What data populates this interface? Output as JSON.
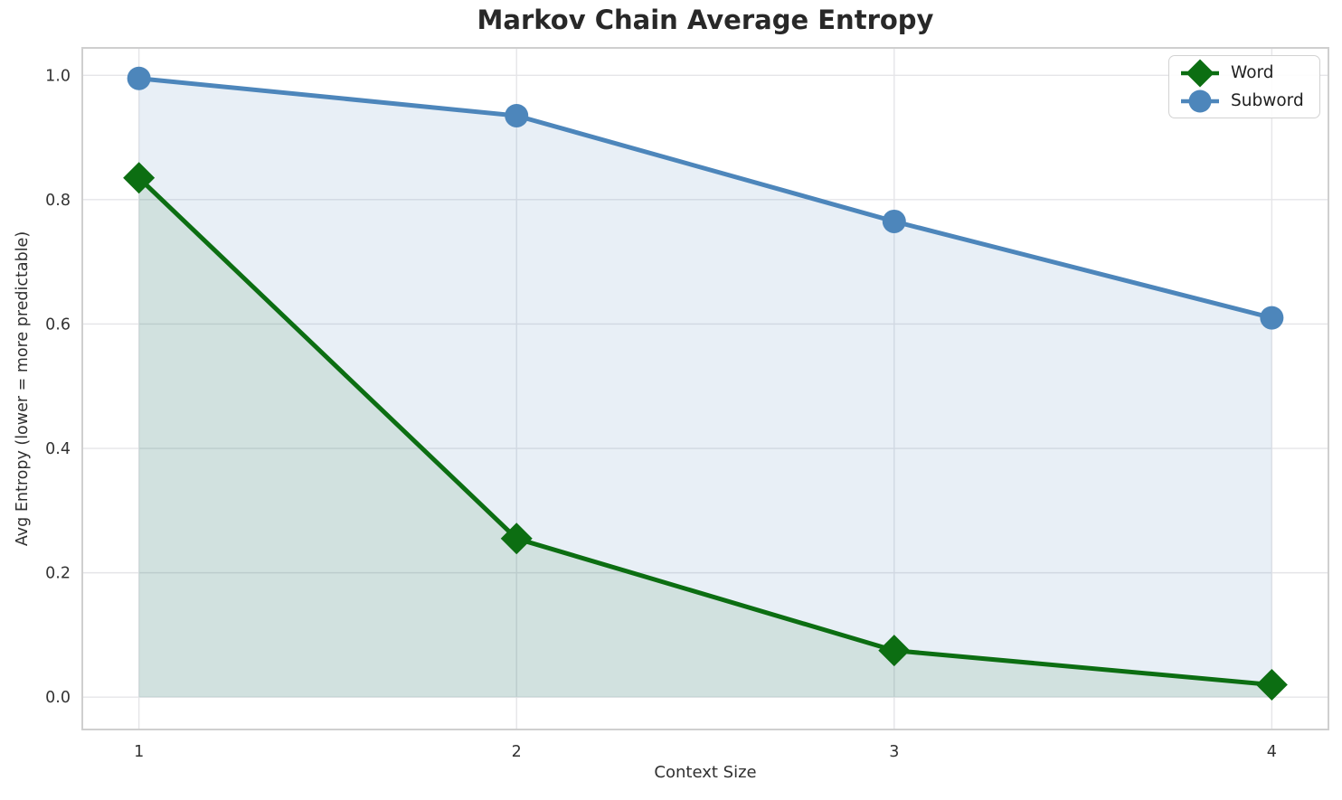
{
  "chart_data": {
    "type": "line",
    "title": "Markov Chain Average Entropy",
    "xlabel": "Context Size",
    "ylabel": "Avg Entropy (lower = more predictable)",
    "x": [
      1,
      2,
      3,
      4
    ],
    "xtick_labels": [
      "1",
      "2",
      "3",
      "4"
    ],
    "yticks": [
      0.0,
      0.2,
      0.4,
      0.6,
      0.8,
      1.0
    ],
    "ytick_labels": [
      "0.0",
      "0.2",
      "0.4",
      "0.6",
      "0.8",
      "1.0"
    ],
    "xlim": [
      0.85,
      4.15
    ],
    "ylim": [
      -0.052,
      1.044
    ],
    "grid": true,
    "legend_position": "upper right",
    "series": [
      {
        "name": "Word",
        "marker": "diamond",
        "color": "#0c6e12",
        "fill_color": "rgba(12,110,18,0.10)",
        "values": [
          0.835,
          0.255,
          0.075,
          0.02
        ]
      },
      {
        "name": "Subword",
        "marker": "circle",
        "color": "#4d86bb",
        "fill_color": "rgba(77,134,187,0.13)",
        "values": [
          0.995,
          0.935,
          0.765,
          0.61
        ]
      }
    ],
    "colors": {
      "grid": "#e5e5e8",
      "spine": "#cfcfcf",
      "title_text": "#282828",
      "tick_text": "#333333",
      "background": "#ffffff"
    }
  }
}
